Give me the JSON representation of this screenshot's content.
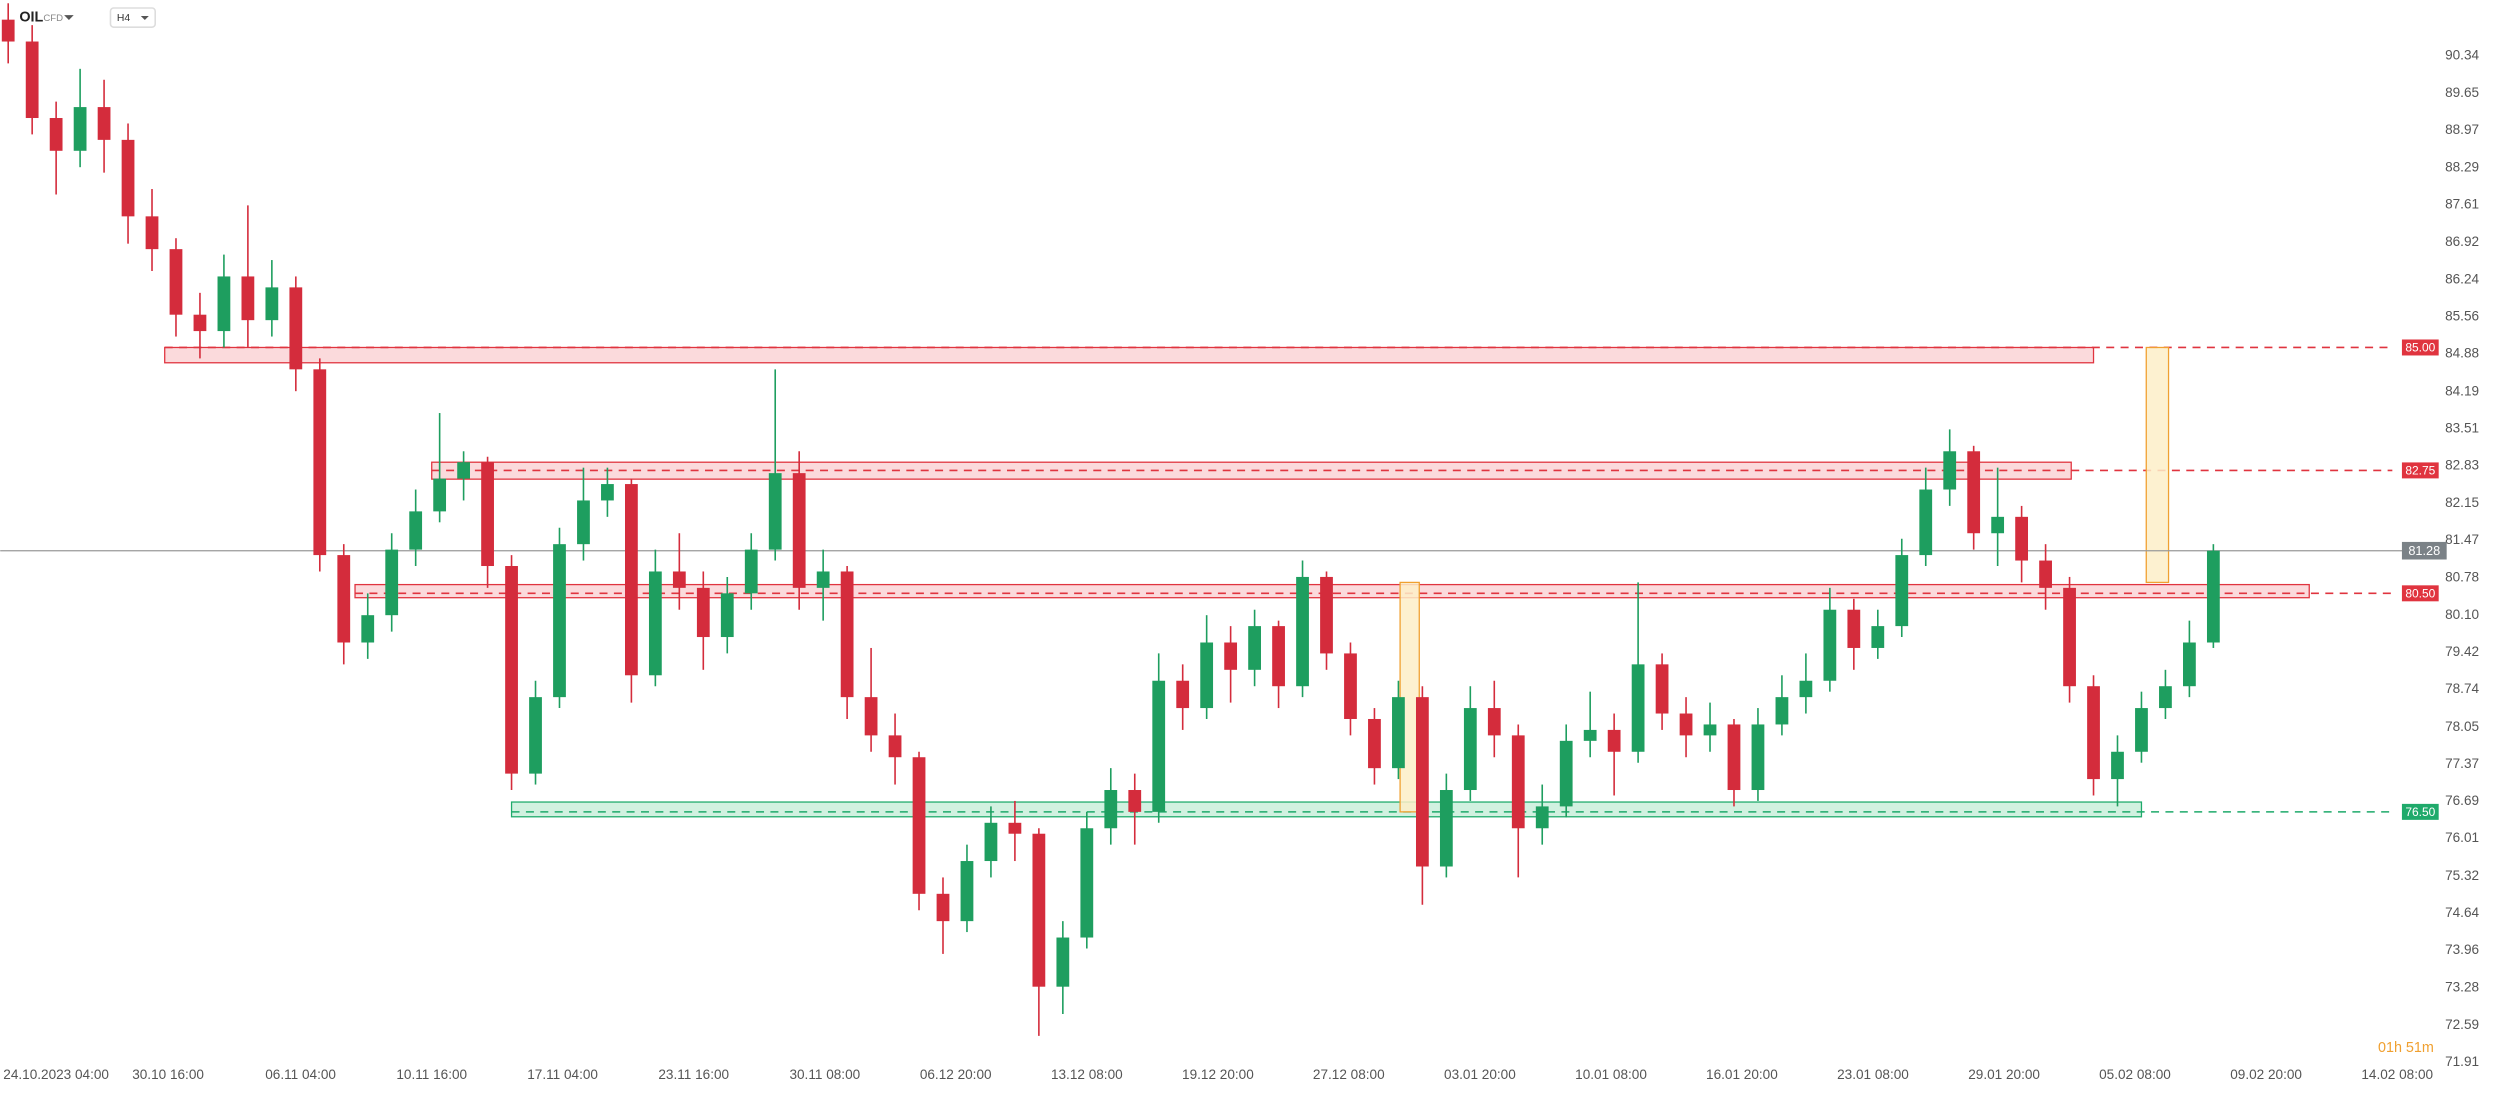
{
  "header": {
    "symbol": "OIL",
    "instrument": "CFD",
    "timeframe": "H4"
  },
  "countdown": "01h 51m",
  "chart_data": {
    "type": "candlestick",
    "up_color": "#1e9e5f",
    "down_color": "#d42c3c",
    "grid": false,
    "xlim": [
      -0.3333,
      100
    ],
    "ylim": [
      71.91,
      91.36
    ],
    "xticks": [
      {
        "value": 2,
        "label": "24.10.2023 04:00"
      },
      {
        "value": 6.67,
        "label": "30.10 16:00"
      },
      {
        "value": 12.2,
        "label": "06.11 04:00"
      },
      {
        "value": 17.67,
        "label": "10.11 16:00"
      },
      {
        "value": 23.13,
        "label": "17.11 04:00"
      },
      {
        "value": 28.6,
        "label": "23.11 16:00"
      },
      {
        "value": 34.07,
        "label": "30.11 08:00"
      },
      {
        "value": 39.53,
        "label": "06.12 20:00"
      },
      {
        "value": 45,
        "label": "13.12 08:00"
      },
      {
        "value": 50.47,
        "label": "19.12 20:00"
      },
      {
        "value": 55.93,
        "label": "27.12 08:00"
      },
      {
        "value": 61.4,
        "label": "03.01 20:00"
      },
      {
        "value": 66.87,
        "label": "10.01 08:00"
      },
      {
        "value": 72.33,
        "label": "16.01 20:00"
      },
      {
        "value": 77.8,
        "label": "23.01 08:00"
      },
      {
        "value": 83.27,
        "label": "29.01 20:00"
      },
      {
        "value": 88.73,
        "label": "05.02 08:00"
      },
      {
        "value": 94.2,
        "label": "09.02 20:00"
      },
      {
        "value": 99.67,
        "label": "14.02 08:00"
      }
    ],
    "yticks": [
      90.34,
      89.65,
      88.97,
      88.29,
      87.61,
      86.92,
      86.24,
      85.56,
      84.88,
      84.19,
      83.51,
      82.83,
      82.15,
      81.47,
      80.78,
      {
        "value": 80.1,
        "label": "80.10"
      },
      79.42,
      78.74,
      78.05,
      77.37,
      76.69,
      76.01,
      75.32,
      74.64,
      73.96,
      73.28,
      72.59,
      71.91
    ],
    "x": [
      0,
      1,
      2,
      3,
      4,
      5,
      6,
      7,
      8,
      9,
      10,
      11,
      12,
      13,
      14,
      15,
      16,
      17,
      18,
      19,
      20,
      21,
      22,
      23,
      24,
      25,
      26,
      27,
      28,
      29,
      30,
      31,
      32,
      33,
      34,
      35,
      36,
      37,
      38,
      39,
      40,
      41,
      42,
      43,
      44,
      45,
      46,
      47,
      48,
      49,
      50,
      51,
      52,
      53,
      54,
      55,
      56,
      57,
      58,
      59,
      60,
      61,
      62,
      63,
      64,
      65,
      66,
      67,
      68,
      69,
      70,
      71,
      72,
      73,
      74,
      75,
      76,
      77,
      78,
      79,
      80,
      81,
      82,
      83,
      84,
      85,
      86,
      87,
      88,
      89,
      90,
      91,
      92
    ],
    "open": [
      91.0,
      90.6,
      89.2,
      88.6,
      89.4,
      88.8,
      87.4,
      86.8,
      85.6,
      85.3,
      86.3,
      85.5,
      86.1,
      84.6,
      81.2,
      79.6,
      80.1,
      81.3,
      82.0,
      82.6,
      82.9,
      81.0,
      77.2,
      78.6,
      81.4,
      82.2,
      82.5,
      79.0,
      80.9,
      80.6,
      79.7,
      80.5,
      81.3,
      82.7,
      80.6,
      80.9,
      78.6,
      77.9,
      77.5,
      75.0,
      74.5,
      75.6,
      76.3,
      76.1,
      73.3,
      74.2,
      76.2,
      76.9,
      76.5,
      78.9,
      78.4,
      79.6,
      79.1,
      79.9,
      78.8,
      80.8,
      79.4,
      78.2,
      77.3,
      78.6,
      75.5,
      76.9,
      78.4,
      77.9,
      76.2,
      76.6,
      77.8,
      78.0,
      77.6,
      79.2,
      78.3,
      77.9,
      78.1,
      76.9,
      78.1,
      78.6,
      78.9,
      80.2,
      79.5,
      79.9,
      81.2,
      82.4,
      83.1,
      81.6,
      81.9,
      81.1,
      80.6,
      78.8,
      77.1,
      77.6,
      78.4,
      78.8,
      79.6
    ],
    "high": [
      91.3,
      90.9,
      89.5,
      90.1,
      89.9,
      89.1,
      87.9,
      87.0,
      86.0,
      86.7,
      87.6,
      86.6,
      86.3,
      84.8,
      81.4,
      80.5,
      81.6,
      82.4,
      83.8,
      83.1,
      83.0,
      81.2,
      78.9,
      81.7,
      82.8,
      82.8,
      82.6,
      81.3,
      81.6,
      80.9,
      80.8,
      81.6,
      84.6,
      83.1,
      81.3,
      81.0,
      79.5,
      78.3,
      77.6,
      75.3,
      75.9,
      76.6,
      76.7,
      76.2,
      74.5,
      76.5,
      77.3,
      77.2,
      79.4,
      79.2,
      80.1,
      79.9,
      80.2,
      80.0,
      81.1,
      80.9,
      79.6,
      78.4,
      78.9,
      78.8,
      77.2,
      78.8,
      78.9,
      78.1,
      77.0,
      78.1,
      78.7,
      78.3,
      80.7,
      79.4,
      78.6,
      78.5,
      78.2,
      78.4,
      79.0,
      79.4,
      80.6,
      80.4,
      80.2,
      81.5,
      82.8,
      83.5,
      83.2,
      82.8,
      82.1,
      81.4,
      80.8,
      79.0,
      77.9,
      78.7,
      79.1,
      80.0,
      81.4
    ],
    "low": [
      90.2,
      88.9,
      87.8,
      88.3,
      88.2,
      86.9,
      86.4,
      85.2,
      84.8,
      85.0,
      85.0,
      85.2,
      84.2,
      80.9,
      79.2,
      79.3,
      79.8,
      81.0,
      81.8,
      82.2,
      80.6,
      76.9,
      77.0,
      78.4,
      81.1,
      81.9,
      78.5,
      78.8,
      80.2,
      79.1,
      79.4,
      80.2,
      81.1,
      80.2,
      80.0,
      78.2,
      77.6,
      77.0,
      74.7,
      73.9,
      74.3,
      75.3,
      75.6,
      72.4,
      72.8,
      74.0,
      75.9,
      75.9,
      76.3,
      78.0,
      78.2,
      78.5,
      78.8,
      78.4,
      78.6,
      79.1,
      77.9,
      77.0,
      77.1,
      74.8,
      75.3,
      76.7,
      77.5,
      75.3,
      75.9,
      76.4,
      77.5,
      76.8,
      77.4,
      78.0,
      77.5,
      77.6,
      76.6,
      76.7,
      77.9,
      78.3,
      78.7,
      79.1,
      79.3,
      79.7,
      81.0,
      82.1,
      81.3,
      81.0,
      80.7,
      80.2,
      78.5,
      76.8,
      76.6,
      77.4,
      78.2,
      78.6,
      79.5
    ],
    "close": [
      90.6,
      89.2,
      88.6,
      89.4,
      88.8,
      87.4,
      86.8,
      85.6,
      85.3,
      86.3,
      85.5,
      86.1,
      84.6,
      81.2,
      79.6,
      80.1,
      81.3,
      82.0,
      82.6,
      82.9,
      81.0,
      77.2,
      78.6,
      81.4,
      82.2,
      82.5,
      79.0,
      80.9,
      80.6,
      79.7,
      80.5,
      81.3,
      82.7,
      80.6,
      80.9,
      78.6,
      77.9,
      77.5,
      75.0,
      74.5,
      75.6,
      76.3,
      76.1,
      73.3,
      74.2,
      76.2,
      76.9,
      76.5,
      78.9,
      78.4,
      79.6,
      79.1,
      79.9,
      78.8,
      80.8,
      79.4,
      78.2,
      77.3,
      78.6,
      75.5,
      76.9,
      78.4,
      77.9,
      76.2,
      76.6,
      77.8,
      78.0,
      77.6,
      79.2,
      78.3,
      77.9,
      78.1,
      76.9,
      78.1,
      78.6,
      78.9,
      80.2,
      79.5,
      79.9,
      81.2,
      82.4,
      83.1,
      81.6,
      81.9,
      81.1,
      80.6,
      78.8,
      77.1,
      77.6,
      78.4,
      78.8,
      79.6,
      81.28
    ],
    "levels": [
      {
        "value": 85,
        "label": "85.00",
        "color": "#e0343f",
        "fill": "#fad3d6",
        "zone_ylim": [
          84.72,
          85.0
        ],
        "zone_xlim": [
          6.53,
          87
        ]
      },
      {
        "value": 82.75,
        "label": "82.75",
        "color": "#e0343f",
        "fill": "#fad3d6",
        "zone_ylim": [
          82.59,
          82.9
        ],
        "zone_xlim": [
          17.67,
          86.07
        ]
      },
      {
        "value": 80.5,
        "label": "80.50",
        "color": "#e0343f",
        "fill": "#fad3d6",
        "zone_ylim": [
          80.42,
          80.66
        ],
        "zone_xlim": [
          14.47,
          96
        ]
      },
      {
        "value": 76.5,
        "label": "76.50",
        "color": "#1faa6b",
        "fill": "#c9eedb",
        "zone_ylim": [
          76.41,
          76.68
        ],
        "zone_xlim": [
          21,
          89
        ]
      }
    ],
    "ranges": [
      {
        "xlim": [
          89.2,
          90.13
        ],
        "ylim": [
          80.7,
          85.0
        ],
        "color": "#f0a030",
        "fill": "#fdeec8"
      },
      {
        "xlim": [
          58.07,
          58.87
        ],
        "ylim": [
          76.5,
          80.7
        ],
        "color": "#f0a030",
        "fill": "#fdeec8"
      }
    ],
    "last_price": {
      "value": 81.28,
      "label": "81.28",
      "color": "#7b8287"
    }
  }
}
